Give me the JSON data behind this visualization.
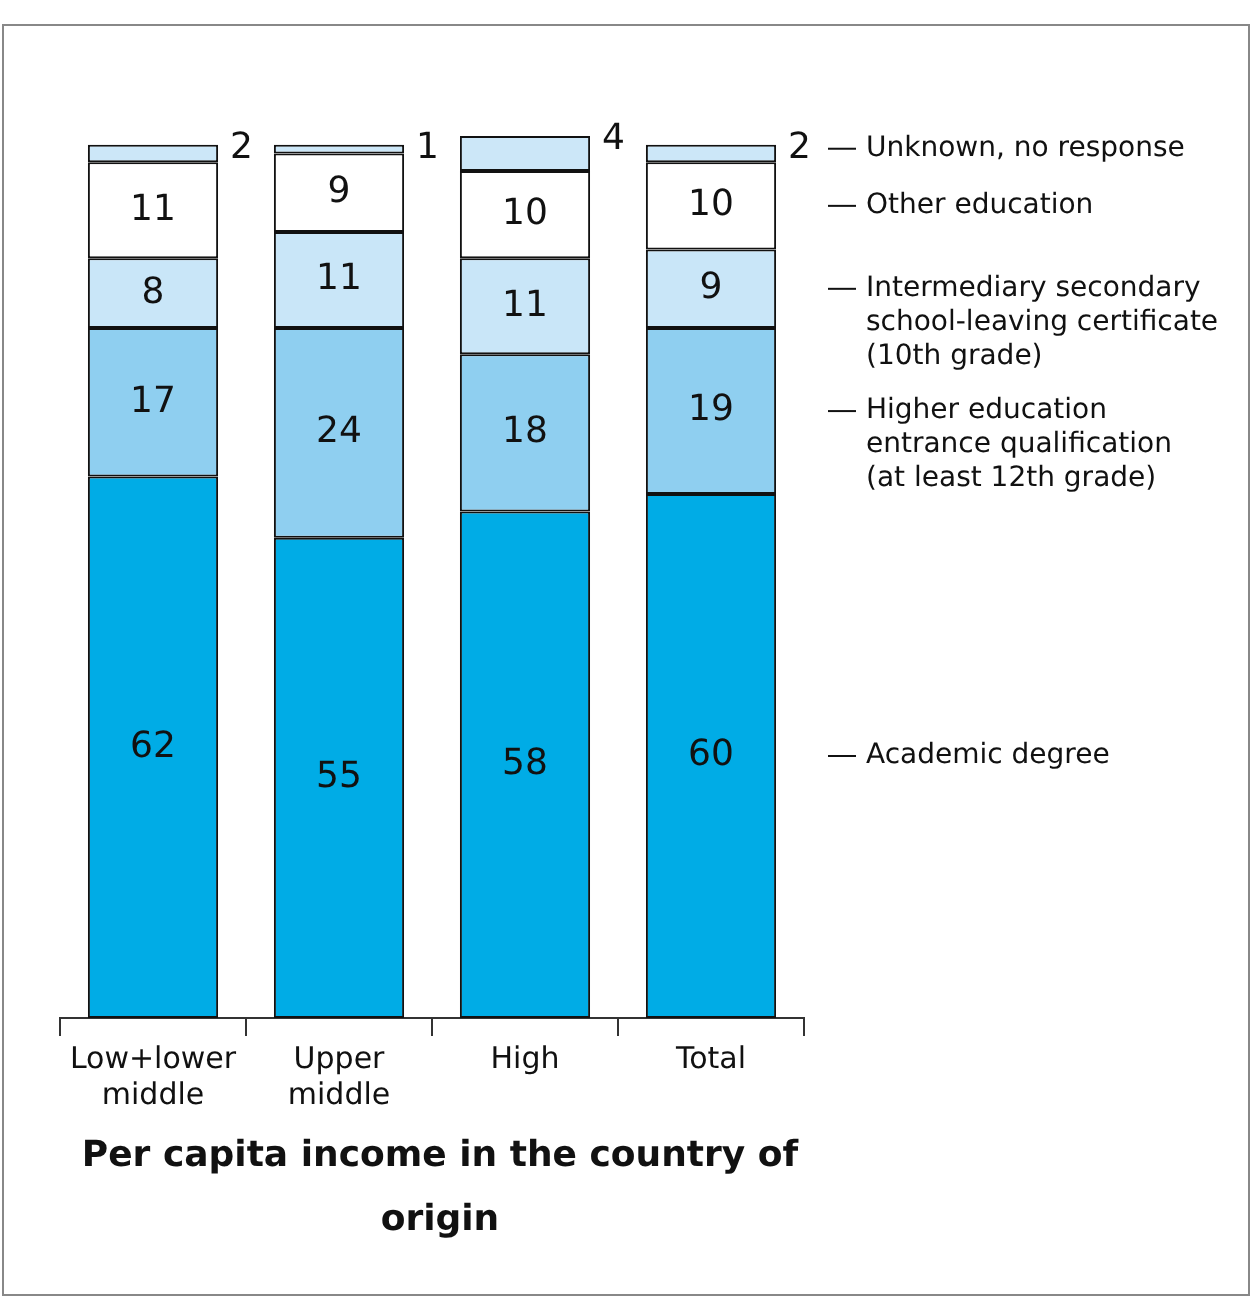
{
  "chart_data": {
    "type": "bar",
    "stacked": true,
    "xlabel": "Per capita income in the country of origin",
    "categories": [
      "Low+lower middle",
      "Upper middle",
      "High",
      "Total"
    ],
    "ylim": [
      0,
      101
    ],
    "tick_labels": "x",
    "grid": false,
    "legend": false,
    "data_labels": true,
    "series": [
      {
        "name": "Academic degree",
        "color": "#00ace6",
        "values": [
          62,
          55,
          58,
          60
        ]
      },
      {
        "name": "Higher education\nentrance qualification\n(at least 12th grade)",
        "color": "#8fcff0",
        "values": [
          17,
          24,
          18,
          19
        ]
      },
      {
        "name": "Intermediary secondary\nschool-leaving certificate\n(10th grade)",
        "color": "#c9e6f8",
        "values": [
          8,
          11,
          11,
          9
        ]
      },
      {
        "name": "Other education",
        "color": "#ffffff",
        "values": [
          11,
          9,
          10,
          10
        ]
      },
      {
        "name": "Unknown, no response",
        "color": "#cce7f8",
        "values": [
          2,
          1,
          4,
          2
        ]
      }
    ]
  }
}
